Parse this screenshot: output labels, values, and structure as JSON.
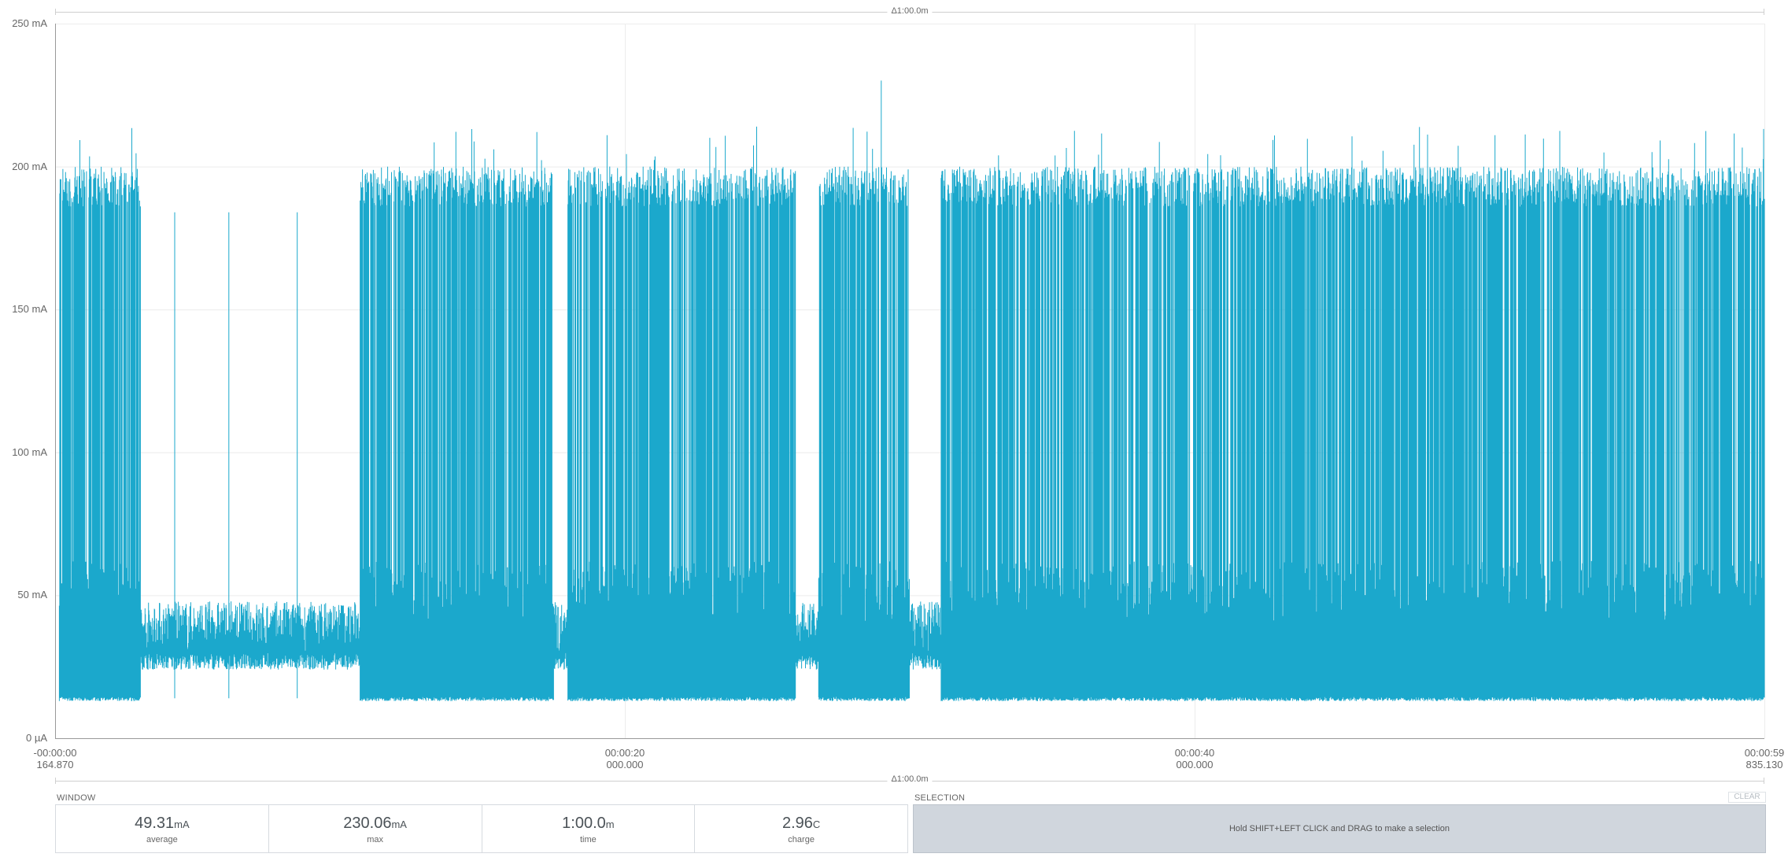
{
  "chart_data": {
    "type": "line",
    "series": [
      {
        "values_description_only": false
      }
    ],
    "y_ticks": [
      "250 mA",
      "200 mA",
      "150 mA",
      "100 mA",
      "50 mA",
      "0 µA"
    ],
    "y_tick_values": [
      250,
      200,
      150,
      100,
      50,
      0
    ],
    "ylim": [
      0,
      250
    ],
    "y_unit": "mA",
    "x_ticks": [
      {
        "time": "-00:00:00",
        "sub": "164.870"
      },
      {
        "time": "00:00:20",
        "sub": "000.000"
      },
      {
        "time": "00:00:40",
        "sub": "000.000"
      },
      {
        "time": "00:00:59",
        "sub": "835.130"
      }
    ],
    "x_tick_seconds": [
      0,
      20,
      40,
      60
    ],
    "xlim_seconds": [
      0,
      60
    ],
    "grid": true,
    "trace_color": "#1ba8cc",
    "baseline_low_mA": 13,
    "peak_mA": 230.06,
    "idle_gaps_seconds": [
      [
        3.0,
        10.7
      ],
      [
        17.5,
        18.0
      ],
      [
        26.0,
        26.8
      ],
      [
        30.0,
        31.1
      ]
    ],
    "idle_spikes_seconds": [
      4.2,
      6.1,
      8.5
    ]
  },
  "range": {
    "delta_top": "Δ1:00.0m",
    "delta_bottom": "Δ1:00.0m"
  },
  "window": {
    "label": "WINDOW",
    "stats": [
      {
        "value": "49.31",
        "unit": "mA",
        "label": "average"
      },
      {
        "value": "230.06",
        "unit": "mA",
        "label": "max"
      },
      {
        "value": "1:00.0",
        "unit": "m",
        "label": "time"
      },
      {
        "value": "2.96",
        "unit": "C",
        "label": "charge"
      }
    ]
  },
  "selection": {
    "label": "SELECTION",
    "clear_label": "CLEAR",
    "hint": "Hold SHIFT+LEFT CLICK and DRAG to make a selection"
  }
}
